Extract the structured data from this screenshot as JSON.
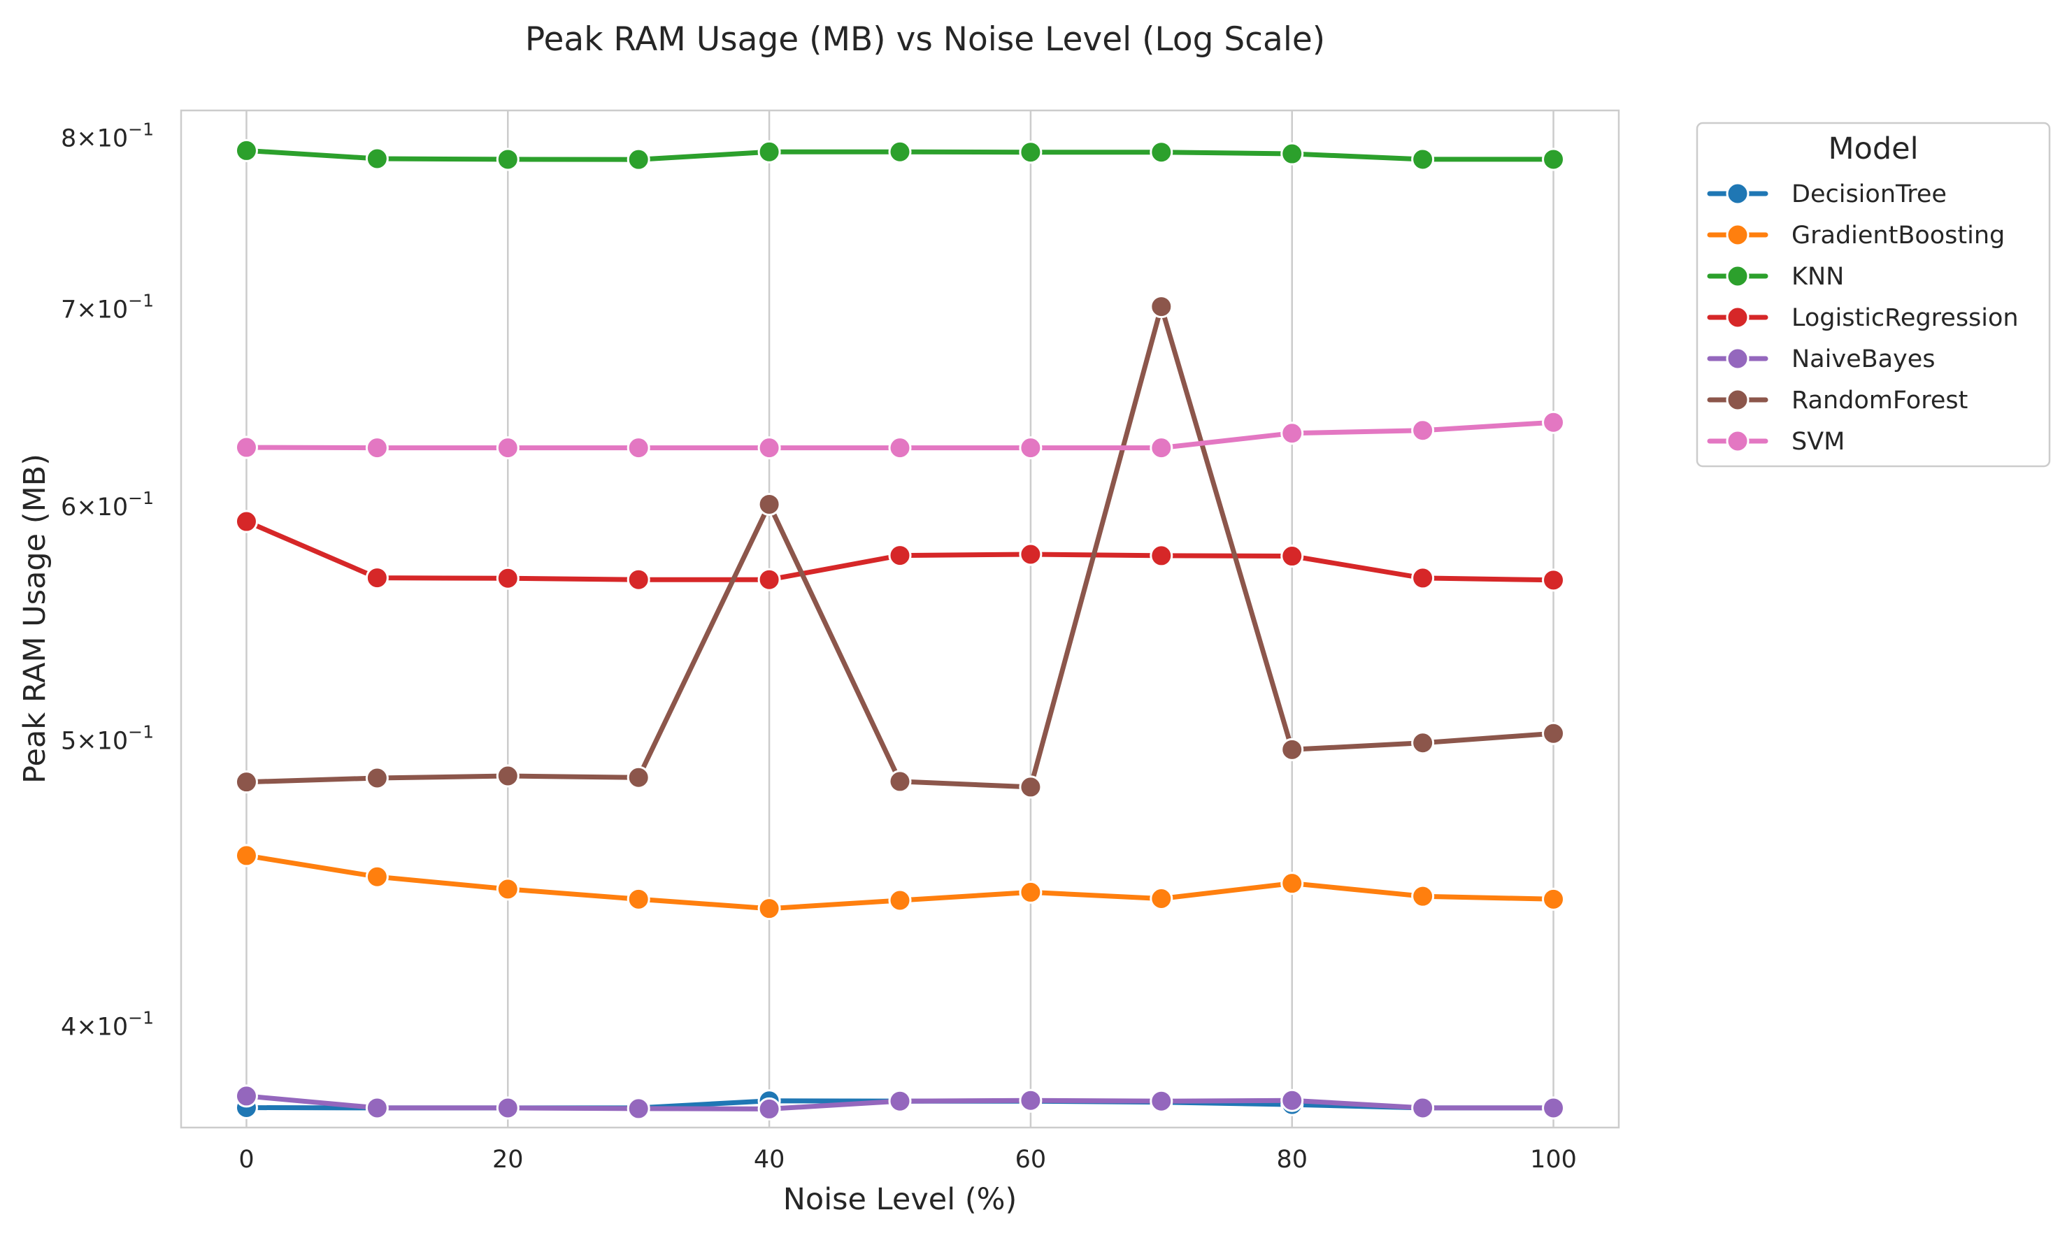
{
  "chart_data": {
    "type": "line",
    "title": "Peak RAM Usage (MB) vs Noise Level (Log Scale)",
    "xlabel": "Noise Level (%)",
    "ylabel": "Peak RAM Usage (MB)",
    "yscale": "log",
    "xlim": [
      -5,
      105
    ],
    "ylim": [
      0.3697,
      0.8175
    ],
    "xticks": [
      0,
      20,
      40,
      60,
      80,
      100
    ],
    "xtick_labels": [
      "0",
      "20",
      "40",
      "60",
      "80",
      "100"
    ],
    "yticks": [
      0.4,
      0.5,
      0.6,
      0.7,
      0.8
    ],
    "ytick_labels": [
      "4",
      "5",
      "6",
      "7",
      "8"
    ],
    "ytick_suffix": "×10",
    "ytick_exponent": "−1",
    "grid": true,
    "legend": {
      "title": "Model",
      "placement": "outside-upper-right"
    },
    "x": [
      0,
      10,
      20,
      30,
      40,
      50,
      60,
      70,
      80,
      90,
      100
    ],
    "series": [
      {
        "name": "DecisionTree",
        "color": "#1f77b4",
        "values": [
          0.3755,
          0.3754,
          0.3754,
          0.3754,
          0.3775,
          0.3774,
          0.3774,
          0.3771,
          0.3764,
          0.3754,
          0.3754
        ]
      },
      {
        "name": "GradientBoosting",
        "color": "#ff7f0e",
        "values": [
          0.4571,
          0.4496,
          0.4453,
          0.4418,
          0.4386,
          0.4414,
          0.4442,
          0.442,
          0.4473,
          0.4428,
          0.4418
        ]
      },
      {
        "name": "KNN",
        "color": "#2ca02c",
        "values": [
          0.7923,
          0.7873,
          0.7869,
          0.7868,
          0.7915,
          0.7915,
          0.7913,
          0.7913,
          0.7903,
          0.7869,
          0.7869
        ]
      },
      {
        "name": "LogisticRegression",
        "color": "#d62728",
        "values": [
          0.5932,
          0.5677,
          0.5675,
          0.5669,
          0.5669,
          0.5777,
          0.5782,
          0.5776,
          0.5774,
          0.5676,
          0.5667
        ]
      },
      {
        "name": "NaiveBayes",
        "color": "#9467bd",
        "values": [
          0.3789,
          0.3754,
          0.3754,
          0.3752,
          0.3751,
          0.3774,
          0.3776,
          0.3774,
          0.3776,
          0.3754,
          0.3754
        ]
      },
      {
        "name": "RandomForest",
        "color": "#8c564b",
        "values": [
          0.4841,
          0.4856,
          0.4864,
          0.4858,
          0.6012,
          0.4843,
          0.4822,
          0.7015,
          0.4965,
          0.4991,
          0.5028
        ]
      },
      {
        "name": "SVM",
        "color": "#e377c2",
        "values": [
          0.6285,
          0.6283,
          0.6283,
          0.6283,
          0.6283,
          0.6283,
          0.6283,
          0.6283,
          0.6355,
          0.6369,
          0.6409
        ]
      }
    ]
  }
}
